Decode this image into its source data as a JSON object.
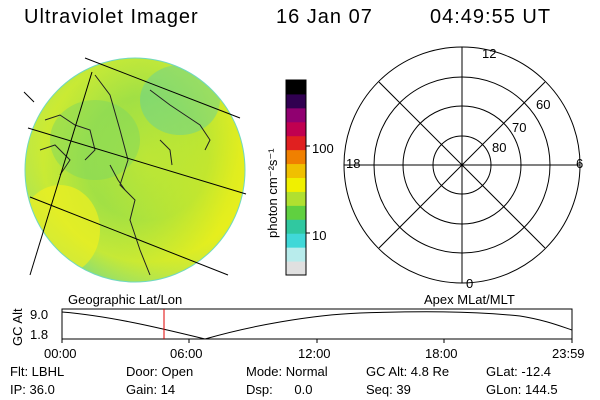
{
  "header": {
    "instrument": "Ultraviolet Imager",
    "date": "16 Jan 07",
    "time": "04:49:55 UT"
  },
  "colorbar": {
    "unit_label": "photon cm⁻²s⁻¹",
    "ticks": [
      "100",
      "10"
    ],
    "scale": "log",
    "colors": [
      "#e0e0e0",
      "#b8ecec",
      "#40d8d8",
      "#30c8a0",
      "#60d040",
      "#b0e030",
      "#f0f000",
      "#f0c000",
      "#f08000",
      "#e02020",
      "#c00050",
      "#900070",
      "#300050",
      "#000000"
    ]
  },
  "left_panel": {
    "label": "Geographic Lat/Lon"
  },
  "polar_plot": {
    "label": "Apex MLat/MLT",
    "mlt_labels": {
      "top": "12",
      "left": "18",
      "right": "6",
      "bottom": "0"
    },
    "lat_labels": [
      "60",
      "70",
      "80"
    ]
  },
  "altitude_plot": {
    "ylabel": "GC Alt",
    "yticks": [
      "9.0",
      "1.8"
    ],
    "xticks": [
      "00:00",
      "06:00",
      "12:00",
      "18:00",
      "23:59"
    ],
    "current_time_marker": "04:49:55"
  },
  "info": {
    "flt": "Flt: LBHL",
    "ip": "IP: 36.0",
    "door": "Door: Open",
    "gain": "Gain: 14",
    "mode": "Mode: Normal",
    "dsp": "Dsp:      0.0",
    "gcalt": "GC Alt: 4.8 Re",
    "seq": "Seq: 39",
    "glat": "GLat: -12.4",
    "glon": "GLon: 144.5"
  }
}
